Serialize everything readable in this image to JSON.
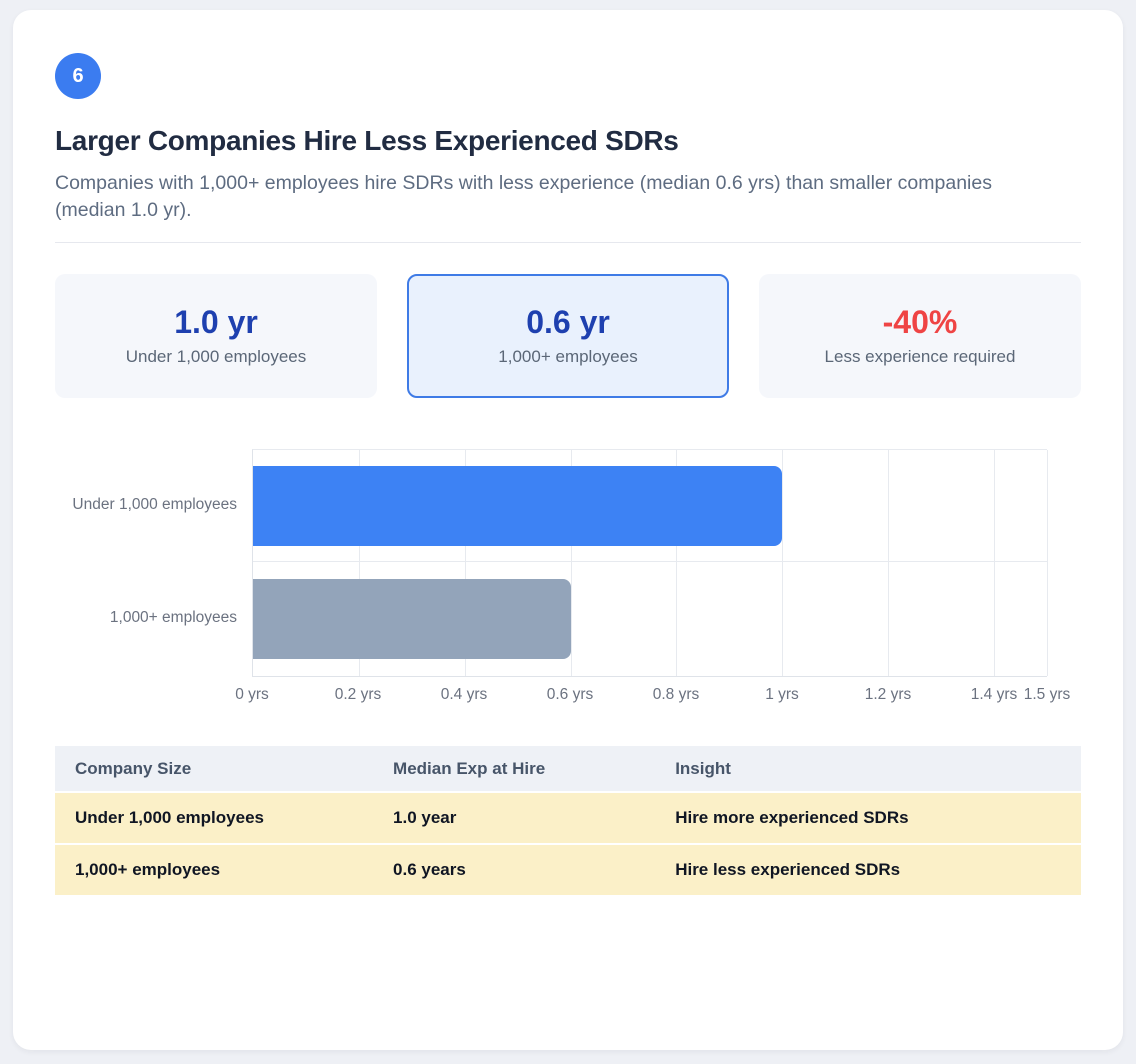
{
  "page": {
    "badge": "6",
    "title": "Larger Companies Hire Less Experienced SDRs",
    "subtitle": "Companies with 1,000+ employees hire SDRs with less experience (median 0.6 yrs) than smaller companies (median 1.0 yr)."
  },
  "stats": [
    {
      "value": "1.0 yr",
      "label": "Under 1,000 employees",
      "highlighted": false
    },
    {
      "value": "0.6 yr",
      "label": "1,000+ employees",
      "highlighted": true
    },
    {
      "value": "-40%",
      "label": "Less experience required",
      "highlighted": false
    }
  ],
  "chart_data": {
    "type": "bar",
    "orientation": "horizontal",
    "categories": [
      "Under 1,000 employees",
      "1,000+ employees"
    ],
    "values": [
      1.0,
      0.6
    ],
    "unit": "yrs",
    "xlabel": "",
    "ylabel": "",
    "xlim": [
      0,
      1.5
    ],
    "grid": true,
    "legend": "none",
    "bar_colors": [
      "#3d82f4",
      "#93a4ba"
    ],
    "xticks": [
      {
        "value": 0,
        "label": "0 yrs"
      },
      {
        "value": 0.2,
        "label": "0.2 yrs"
      },
      {
        "value": 0.4,
        "label": "0.4 yrs"
      },
      {
        "value": 0.6,
        "label": "0.6 yrs"
      },
      {
        "value": 0.8,
        "label": "0.8 yrs"
      },
      {
        "value": 1,
        "label": "1 yrs"
      },
      {
        "value": 1.2,
        "label": "1.2 yrs"
      },
      {
        "value": 1.4,
        "label": "1.4 yrs"
      },
      {
        "value": 1.5,
        "label": "1.5 yrs"
      }
    ]
  },
  "table": {
    "headers": [
      "Company Size",
      "Median Exp at Hire",
      "Insight"
    ],
    "rows": [
      [
        "Under 1,000 employees",
        "1.0 year",
        "Hire more experienced SDRs"
      ],
      [
        "1,000+ employees",
        "0.6 years",
        "Hire less experienced SDRs"
      ]
    ]
  },
  "colors": {
    "badge_blue": "#3b7cf0",
    "stat_value_blue": "#1e40af",
    "stat_negative_red": "#ef4444",
    "highlight_card_bg": "#e9f1fd",
    "highlight_card_border": "#3f7be6",
    "bar_blue": "#3d82f4",
    "bar_gray": "#93a4ba",
    "table_row_yellow": "#fbf0c8",
    "table_header_bg": "#eef1f6"
  }
}
